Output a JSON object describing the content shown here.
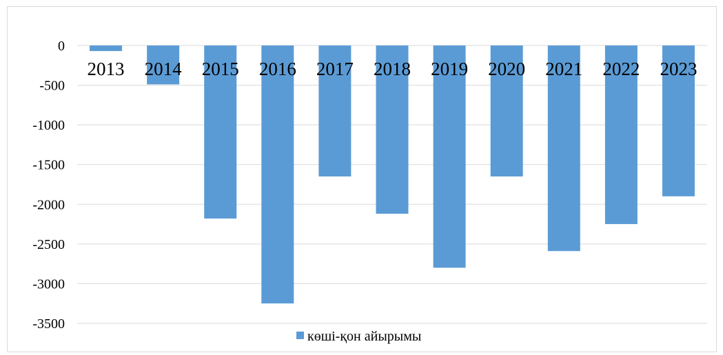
{
  "chart_data": {
    "type": "bar",
    "categories": [
      "2013",
      "2014",
      "2015",
      "2016",
      "2017",
      "2018",
      "2019",
      "2020",
      "2021",
      "2022",
      "2023"
    ],
    "series": [
      {
        "name": "көші-қон айырымы",
        "color": "#5b9bd5",
        "values": [
          -70,
          -490,
          -2180,
          -3250,
          -1650,
          -2120,
          -2800,
          -1650,
          -2590,
          -2250,
          -1900
        ]
      }
    ],
    "yticks": [
      "0",
      "-500",
      "-1000",
      "-1500",
      "-2000",
      "-2500",
      "-3000",
      "-3500"
    ],
    "ylim": [
      -3500,
      0
    ],
    "grid": true,
    "legend_position": "bottom",
    "gridline_color": "#d9d9d9",
    "title": "",
    "xlabel": "",
    "ylabel": ""
  }
}
